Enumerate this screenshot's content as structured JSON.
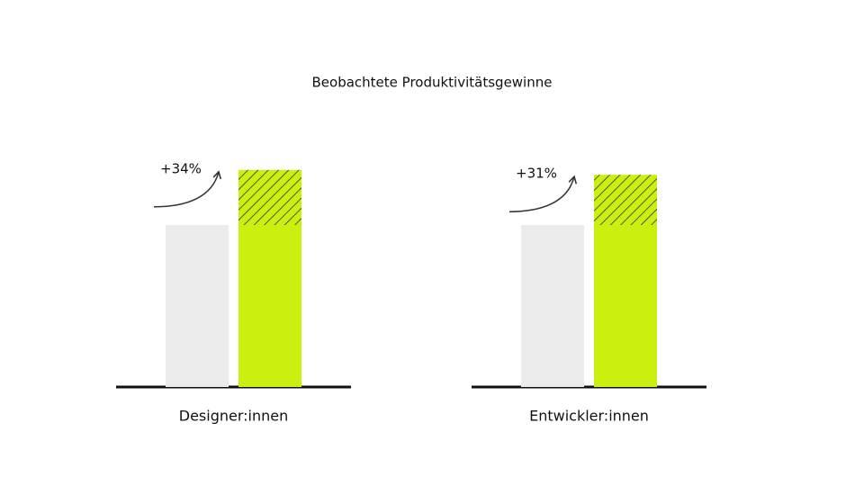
{
  "chart_data": {
    "type": "bar",
    "title": "Beobachtete Produktivitätsgewinne",
    "categories": [
      "Designer:innen",
      "Entwickler:innen"
    ],
    "series": [
      {
        "color": "#ebebeb",
        "values": [
          100,
          100
        ]
      },
      {
        "color": "#cbf00f",
        "values": [
          100,
          100
        ]
      },
      {
        "color": "#cbf00f",
        "hatch": true,
        "values": [
          34,
          31
        ],
        "value_labels": [
          "+34%",
          "+31%"
        ]
      }
    ],
    "ylim": [
      0,
      150
    ]
  }
}
